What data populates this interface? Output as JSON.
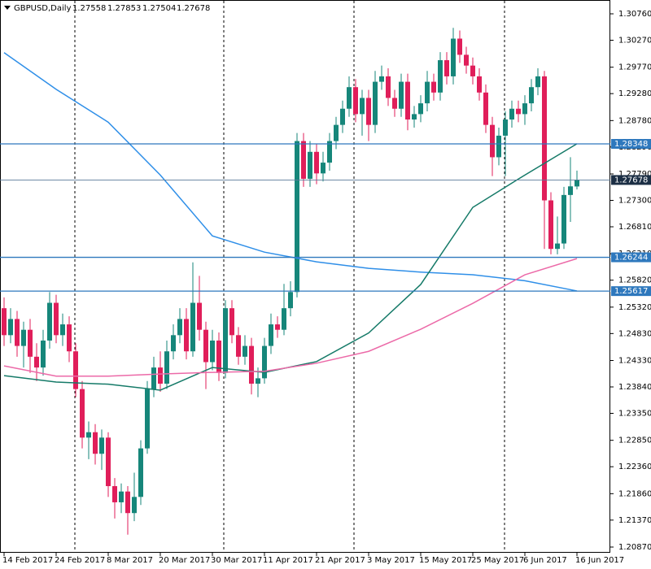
{
  "chart_data": {
    "type": "candlestick",
    "title": "GBPUSD,Daily",
    "categories": [
      "14 Feb 2017",
      null,
      null,
      null,
      null,
      null,
      null,
      null,
      "24 Feb 2017",
      null,
      null,
      null,
      null,
      null,
      null,
      null,
      "8 Mar 2017",
      null,
      null,
      null,
      null,
      null,
      null,
      null,
      "20 Mar 2017",
      null,
      null,
      null,
      null,
      null,
      null,
      null,
      "30 Mar 2017",
      null,
      null,
      null,
      null,
      null,
      null,
      null,
      "11 Apr 2017",
      null,
      null,
      null,
      null,
      null,
      null,
      null,
      "21 Apr 2017",
      null,
      null,
      null,
      null,
      null,
      null,
      null,
      "3 May 2017",
      null,
      null,
      null,
      null,
      null,
      null,
      null,
      "15 May 2017",
      null,
      null,
      null,
      null,
      null,
      null,
      null,
      "25 May 2017",
      null,
      null,
      null,
      null,
      null,
      null,
      null,
      "6 Jun 2017",
      null,
      null,
      null,
      null,
      null,
      null,
      null,
      "16 Jun 2017"
    ],
    "open": [
      1.253,
      1.248,
      1.251,
      1.246,
      1.249,
      1.244,
      1.242,
      1.247,
      1.254,
      1.248,
      1.25,
      1.245,
      1.238,
      1.229,
      1.23,
      1.226,
      1.229,
      1.22,
      1.217,
      1.219,
      1.215,
      1.218,
      1.227,
      1.238,
      1.242,
      1.239,
      1.245,
      1.248,
      1.251,
      1.245,
      1.254,
      1.249,
      1.243,
      1.247,
      1.241,
      1.253,
      1.248,
      1.244,
      1.246,
      1.239,
      1.24,
      1.246,
      1.25,
      1.249,
      1.253,
      1.256,
      1.284,
      1.277,
      1.282,
      1.278,
      1.28,
      1.284,
      1.287,
      1.29,
      1.294,
      1.289,
      1.292,
      1.287,
      1.295,
      1.296,
      1.292,
      1.29,
      1.295,
      1.288,
      1.289,
      1.291,
      1.295,
      1.293,
      1.299,
      1.296,
      1.303,
      1.3,
      1.298,
      1.296,
      1.293,
      1.287,
      1.281,
      1.285,
      1.288,
      1.29,
      1.289,
      1.291,
      1.294,
      1.296,
      1.273,
      1.264,
      1.265,
      1.274,
      1.27558
    ],
    "high": [
      1.255,
      1.253,
      1.2525,
      1.2505,
      1.251,
      1.2465,
      1.249,
      1.256,
      1.2555,
      1.252,
      1.2515,
      1.2465,
      1.2395,
      1.232,
      1.2315,
      1.2305,
      1.23,
      1.2215,
      1.2205,
      1.22,
      1.2225,
      1.2285,
      1.2395,
      1.244,
      1.245,
      1.247,
      1.25,
      1.253,
      1.253,
      1.2615,
      1.259,
      1.2505,
      1.249,
      1.2485,
      1.2545,
      1.2545,
      1.2495,
      1.248,
      1.2475,
      1.242,
      1.2475,
      1.252,
      1.2515,
      1.2575,
      1.258,
      1.2855,
      1.2855,
      1.284,
      1.2835,
      1.282,
      1.2855,
      1.2885,
      1.2915,
      1.296,
      1.2955,
      1.2935,
      1.2935,
      1.297,
      1.298,
      1.2975,
      1.2935,
      1.2965,
      1.2965,
      1.2905,
      1.2925,
      1.297,
      1.2965,
      1.3005,
      1.3005,
      1.305,
      1.3045,
      1.3015,
      1.2995,
      1.2975,
      1.2945,
      1.2885,
      1.2865,
      1.2895,
      1.2915,
      1.2915,
      1.2925,
      1.2955,
      1.2975,
      1.297,
      1.2745,
      1.27,
      1.2755,
      1.281,
      1.27853
    ],
    "low": [
      1.246,
      1.2465,
      1.244,
      1.242,
      1.241,
      1.2395,
      1.2405,
      1.2455,
      1.2465,
      1.246,
      1.243,
      1.2365,
      1.227,
      1.225,
      1.224,
      1.223,
      1.218,
      1.214,
      1.215,
      1.211,
      1.2135,
      1.2165,
      1.226,
      1.2365,
      1.2375,
      1.238,
      1.2435,
      1.2465,
      1.2435,
      1.244,
      1.247,
      1.238,
      1.2415,
      1.2395,
      1.24,
      1.2465,
      1.2425,
      1.2425,
      1.237,
      1.2365,
      1.239,
      1.2445,
      1.2475,
      1.248,
      1.2515,
      1.255,
      1.2755,
      1.2755,
      1.276,
      1.2765,
      1.2785,
      1.2825,
      1.2855,
      1.2885,
      1.2875,
      1.285,
      1.284,
      1.2855,
      1.2935,
      1.2905,
      1.2885,
      1.2885,
      1.286,
      1.2865,
      1.2875,
      1.2895,
      1.2915,
      1.2915,
      1.2945,
      1.2945,
      1.2985,
      1.2965,
      1.2945,
      1.2915,
      1.2855,
      1.2775,
      1.2795,
      1.2775,
      1.2865,
      1.2875,
      1.287,
      1.2895,
      1.2925,
      1.264,
      1.263,
      1.263,
      1.264,
      1.269,
      1.27504
    ],
    "close": [
      1.248,
      1.251,
      1.246,
      1.249,
      1.244,
      1.242,
      1.247,
      1.254,
      1.248,
      1.25,
      1.245,
      1.238,
      1.229,
      1.23,
      1.226,
      1.229,
      1.22,
      1.217,
      1.219,
      1.215,
      1.218,
      1.227,
      1.238,
      1.242,
      1.239,
      1.245,
      1.248,
      1.251,
      1.245,
      1.254,
      1.249,
      1.243,
      1.247,
      1.241,
      1.253,
      1.248,
      1.244,
      1.246,
      1.239,
      1.24,
      1.246,
      1.25,
      1.249,
      1.253,
      1.256,
      1.284,
      1.277,
      1.282,
      1.278,
      1.28,
      1.284,
      1.287,
      1.29,
      1.294,
      1.289,
      1.292,
      1.287,
      1.295,
      1.296,
      1.292,
      1.29,
      1.295,
      1.288,
      1.289,
      1.291,
      1.295,
      1.293,
      1.299,
      1.296,
      1.303,
      1.3,
      1.298,
      1.296,
      1.293,
      1.287,
      1.281,
      1.285,
      1.288,
      1.29,
      1.289,
      1.291,
      1.294,
      1.296,
      1.273,
      1.264,
      1.265,
      1.274,
      1.2756,
      1.27678
    ],
    "up_color": "#16867a",
    "down_color": "#e01e5a",
    "series": [
      {
        "color": "#2f8fe8",
        "x": [
          0,
          8,
          16,
          24,
          32,
          40,
          48,
          56,
          64,
          72,
          80,
          88
        ],
        "values": [
          1.3004,
          1.2936,
          1.2875,
          1.2777,
          1.2664,
          1.2634,
          1.2616,
          1.2604,
          1.2597,
          1.2592,
          1.2581,
          1.2562
        ]
      },
      {
        "color": "#157a68",
        "x": [
          0,
          8,
          16,
          24,
          32,
          40,
          48,
          56,
          64,
          72,
          80,
          88
        ],
        "values": [
          1.2405,
          1.2393,
          1.2389,
          1.2378,
          1.242,
          1.2411,
          1.2431,
          1.2484,
          1.2574,
          1.2717,
          1.2777,
          1.2835
        ]
      },
      {
        "color": "#ec6aa8",
        "x": [
          0,
          8,
          16,
          24,
          32,
          40,
          48,
          56,
          64,
          72,
          80,
          88
        ],
        "values": [
          1.2423,
          1.2404,
          1.2404,
          1.2408,
          1.2411,
          1.2413,
          1.2428,
          1.245,
          1.2491,
          1.2539,
          1.2592,
          1.2622
        ]
      }
    ],
    "levels": [
      1.28348,
      1.26244,
      1.25617
    ],
    "level_color": "#2e78bd",
    "ylim": [
      1.2087,
      1.3076
    ],
    "yticks": [
      {
        "value": 1.3076,
        "label": "1.30760"
      },
      {
        "value": 1.3027,
        "label": "1.30270"
      },
      {
        "value": 1.2977,
        "label": "1.29770"
      },
      {
        "value": 1.2928,
        "label": "1.29280"
      },
      {
        "value": 1.2878,
        "label": "1.28780"
      },
      {
        "value": 1.2829,
        "label": "1.28290"
      },
      {
        "value": 1.2779,
        "label": "1.27790"
      },
      {
        "value": 1.273,
        "label": "1.27300"
      },
      {
        "value": 1.2681,
        "label": "1.26810"
      },
      {
        "value": 1.2631,
        "label": "1.26310"
      },
      {
        "value": 1.2582,
        "label": "1.25820"
      },
      {
        "value": 1.2532,
        "label": "1.25320"
      },
      {
        "value": 1.2483,
        "label": "1.24830"
      },
      {
        "value": 1.2433,
        "label": "1.24330"
      },
      {
        "value": 1.2384,
        "label": "1.23840"
      },
      {
        "value": 1.2335,
        "label": "1.23350"
      },
      {
        "value": 1.2285,
        "label": "1.22850"
      },
      {
        "value": 1.2236,
        "label": "1.22360"
      },
      {
        "value": 1.2186,
        "label": "1.21860"
      },
      {
        "value": 1.2137,
        "label": "1.21370"
      },
      {
        "value": 1.2087,
        "label": "1.20870"
      }
    ]
  }
}
